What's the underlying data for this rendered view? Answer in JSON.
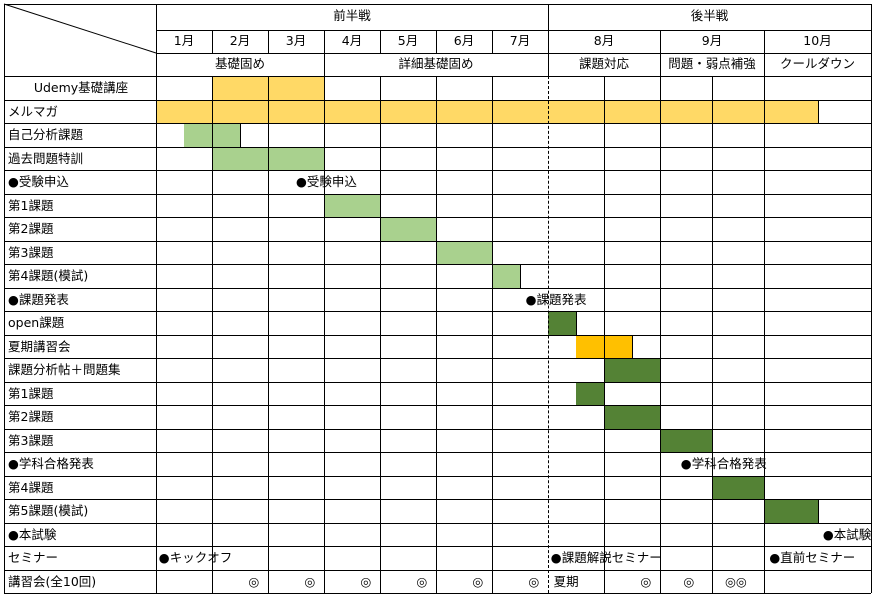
{
  "colors": {
    "light_green": "#a9d18e",
    "dark_green": "#548235",
    "yellow": "#ffd966",
    "orange": "#ffc000",
    "grid": "#000000"
  },
  "halves": [
    {
      "label": "前半戦",
      "start": 0,
      "end": 7
    },
    {
      "label": "後半戦",
      "start": 7,
      "end": 12
    }
  ],
  "months": [
    {
      "label": "1月",
      "start": 0,
      "end": 1
    },
    {
      "label": "2月",
      "start": 1,
      "end": 2
    },
    {
      "label": "3月",
      "start": 2,
      "end": 3
    },
    {
      "label": "4月",
      "start": 3,
      "end": 4
    },
    {
      "label": "5月",
      "start": 4,
      "end": 5
    },
    {
      "label": "6月",
      "start": 5,
      "end": 6
    },
    {
      "label": "7月",
      "start": 6,
      "end": 7
    },
    {
      "label": "8月",
      "start": 7,
      "end": 9
    },
    {
      "label": "9月",
      "start": 9,
      "end": 11
    },
    {
      "label": "10月",
      "start": 11,
      "end": 12
    }
  ],
  "phases": [
    {
      "label": "基礎固め",
      "start": 0,
      "end": 3
    },
    {
      "label": "詳細基礎固め",
      "start": 3,
      "end": 7
    },
    {
      "label": "課題対応",
      "start": 7,
      "end": 9
    },
    {
      "label": "問題・弱点補強",
      "start": 9,
      "end": 11
    },
    {
      "label": "クールダウン",
      "start": 11,
      "end": 12
    }
  ],
  "rows": [
    {
      "label": "Udemy基礎講座",
      "align": "center",
      "bars": [
        {
          "start": 1,
          "end": 3,
          "color": "yellow"
        }
      ]
    },
    {
      "label": "メルマガ",
      "bars": [
        {
          "start": 0,
          "end": 11.5,
          "color": "yellow"
        }
      ]
    },
    {
      "label": "自己分析課題",
      "bars": [
        {
          "start": 0.5,
          "end": 1.5,
          "color": "light_green"
        }
      ]
    },
    {
      "label": "過去問題特訓",
      "bars": [
        {
          "start": 1,
          "end": 3,
          "color": "light_green"
        }
      ]
    },
    {
      "label": "●受験申込",
      "markers": [
        {
          "text": "●受験申込",
          "at": 2.5
        }
      ]
    },
    {
      "label": "第1課題",
      "bars": [
        {
          "start": 3,
          "end": 4,
          "color": "light_green"
        }
      ]
    },
    {
      "label": "第2課題",
      "bars": [
        {
          "start": 4,
          "end": 5,
          "color": "light_green"
        }
      ]
    },
    {
      "label": "第3課題",
      "bars": [
        {
          "start": 5,
          "end": 6,
          "color": "light_green"
        }
      ]
    },
    {
      "label": "第4課題(模試)",
      "bars": [
        {
          "start": 6,
          "end": 6.5,
          "color": "light_green"
        }
      ]
    },
    {
      "label": "●課題発表",
      "markers": [
        {
          "text": "●課題発表",
          "at": 6.6
        }
      ]
    },
    {
      "label": "open課題",
      "bars": [
        {
          "start": 7,
          "end": 7.5,
          "color": "dark_green"
        }
      ]
    },
    {
      "label": "夏期講習会",
      "bars": [
        {
          "start": 7.5,
          "end": 8.5,
          "color": "orange"
        }
      ]
    },
    {
      "label": "課題分析帖＋問題集",
      "bars": [
        {
          "start": 8,
          "end": 9,
          "color": "dark_green"
        }
      ]
    },
    {
      "label": "第1課題",
      "bars": [
        {
          "start": 7.5,
          "end": 8,
          "color": "dark_green"
        }
      ]
    },
    {
      "label": "第2課題",
      "bars": [
        {
          "start": 8,
          "end": 9,
          "color": "dark_green"
        }
      ]
    },
    {
      "label": "第3課題",
      "bars": [
        {
          "start": 9,
          "end": 10,
          "color": "dark_green"
        }
      ]
    },
    {
      "label": "●学科合格発表",
      "markers": [
        {
          "text": "●学科合格発表",
          "at": 9.4
        }
      ]
    },
    {
      "label": "第4課題",
      "bars": [
        {
          "start": 10,
          "end": 11,
          "color": "dark_green"
        }
      ]
    },
    {
      "label": "第5課題(模試)",
      "bars": [
        {
          "start": 11,
          "end": 11.5,
          "color": "dark_green"
        }
      ]
    },
    {
      "label": "●本試験",
      "markers": [
        {
          "text": "●本試験",
          "at": 11.55
        }
      ]
    },
    {
      "label": "セミナー",
      "markers": [
        {
          "text": "●キックオフ",
          "at": 0.05
        },
        {
          "text": "●課題解説セミナー",
          "at": 7.05
        },
        {
          "text": "●直前セミナー",
          "at": 11.05
        }
      ]
    },
    {
      "label": "講習会(全10回)",
      "markers": [
        {
          "text": "◎",
          "at": 1.65
        },
        {
          "text": "◎",
          "at": 2.65
        },
        {
          "text": "◎",
          "at": 3.65
        },
        {
          "text": "◎",
          "at": 4.65
        },
        {
          "text": "◎",
          "at": 5.65
        },
        {
          "text": "◎",
          "at": 6.65
        },
        {
          "text": "夏期",
          "at": 7.1
        },
        {
          "text": "◎",
          "at": 8.65
        },
        {
          "text": "◎",
          "at": 9.45
        },
        {
          "text": "◎◎",
          "at": 10.25
        }
      ]
    }
  ]
}
